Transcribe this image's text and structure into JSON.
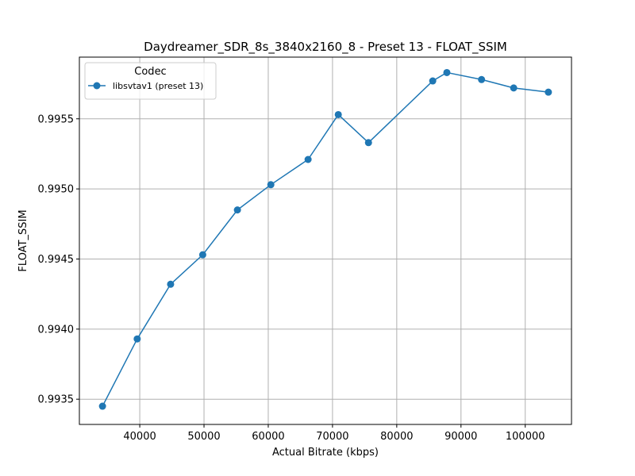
{
  "chart_data": {
    "type": "line",
    "title": "Daydreamer_SDR_8s_3840x2160_8 - Preset 13 - FLOAT_SSIM",
    "xlabel": "Actual Bitrate (kbps)",
    "ylabel": "FLOAT_SSIM",
    "xlim": [
      30600,
      107200
    ],
    "ylim": [
      0.99332,
      0.99594
    ],
    "xticks": [
      40000,
      50000,
      60000,
      70000,
      80000,
      90000,
      100000
    ],
    "xtick_labels": [
      "40000",
      "50000",
      "60000",
      "70000",
      "80000",
      "90000",
      "100000"
    ],
    "yticks": [
      0.9935,
      0.994,
      0.9945,
      0.995,
      0.9955
    ],
    "ytick_labels": [
      "0.9935",
      "0.9940",
      "0.9945",
      "0.9950",
      "0.9955"
    ],
    "grid": true,
    "legend": {
      "title": "Codec",
      "position": "upper-left"
    },
    "series": [
      {
        "name": "libsvtav1 (preset 13)",
        "color": "#1f77b4",
        "marker": "circle",
        "x": [
          34200,
          39600,
          44800,
          49800,
          55200,
          60400,
          66200,
          70900,
          75600,
          85600,
          87800,
          93200,
          98200,
          103600
        ],
        "y": [
          0.99345,
          0.99393,
          0.99432,
          0.99453,
          0.99485,
          0.99503,
          0.99521,
          0.99553,
          0.99533,
          0.99577,
          0.99583,
          0.99578,
          0.99572,
          0.99569
        ]
      }
    ]
  }
}
